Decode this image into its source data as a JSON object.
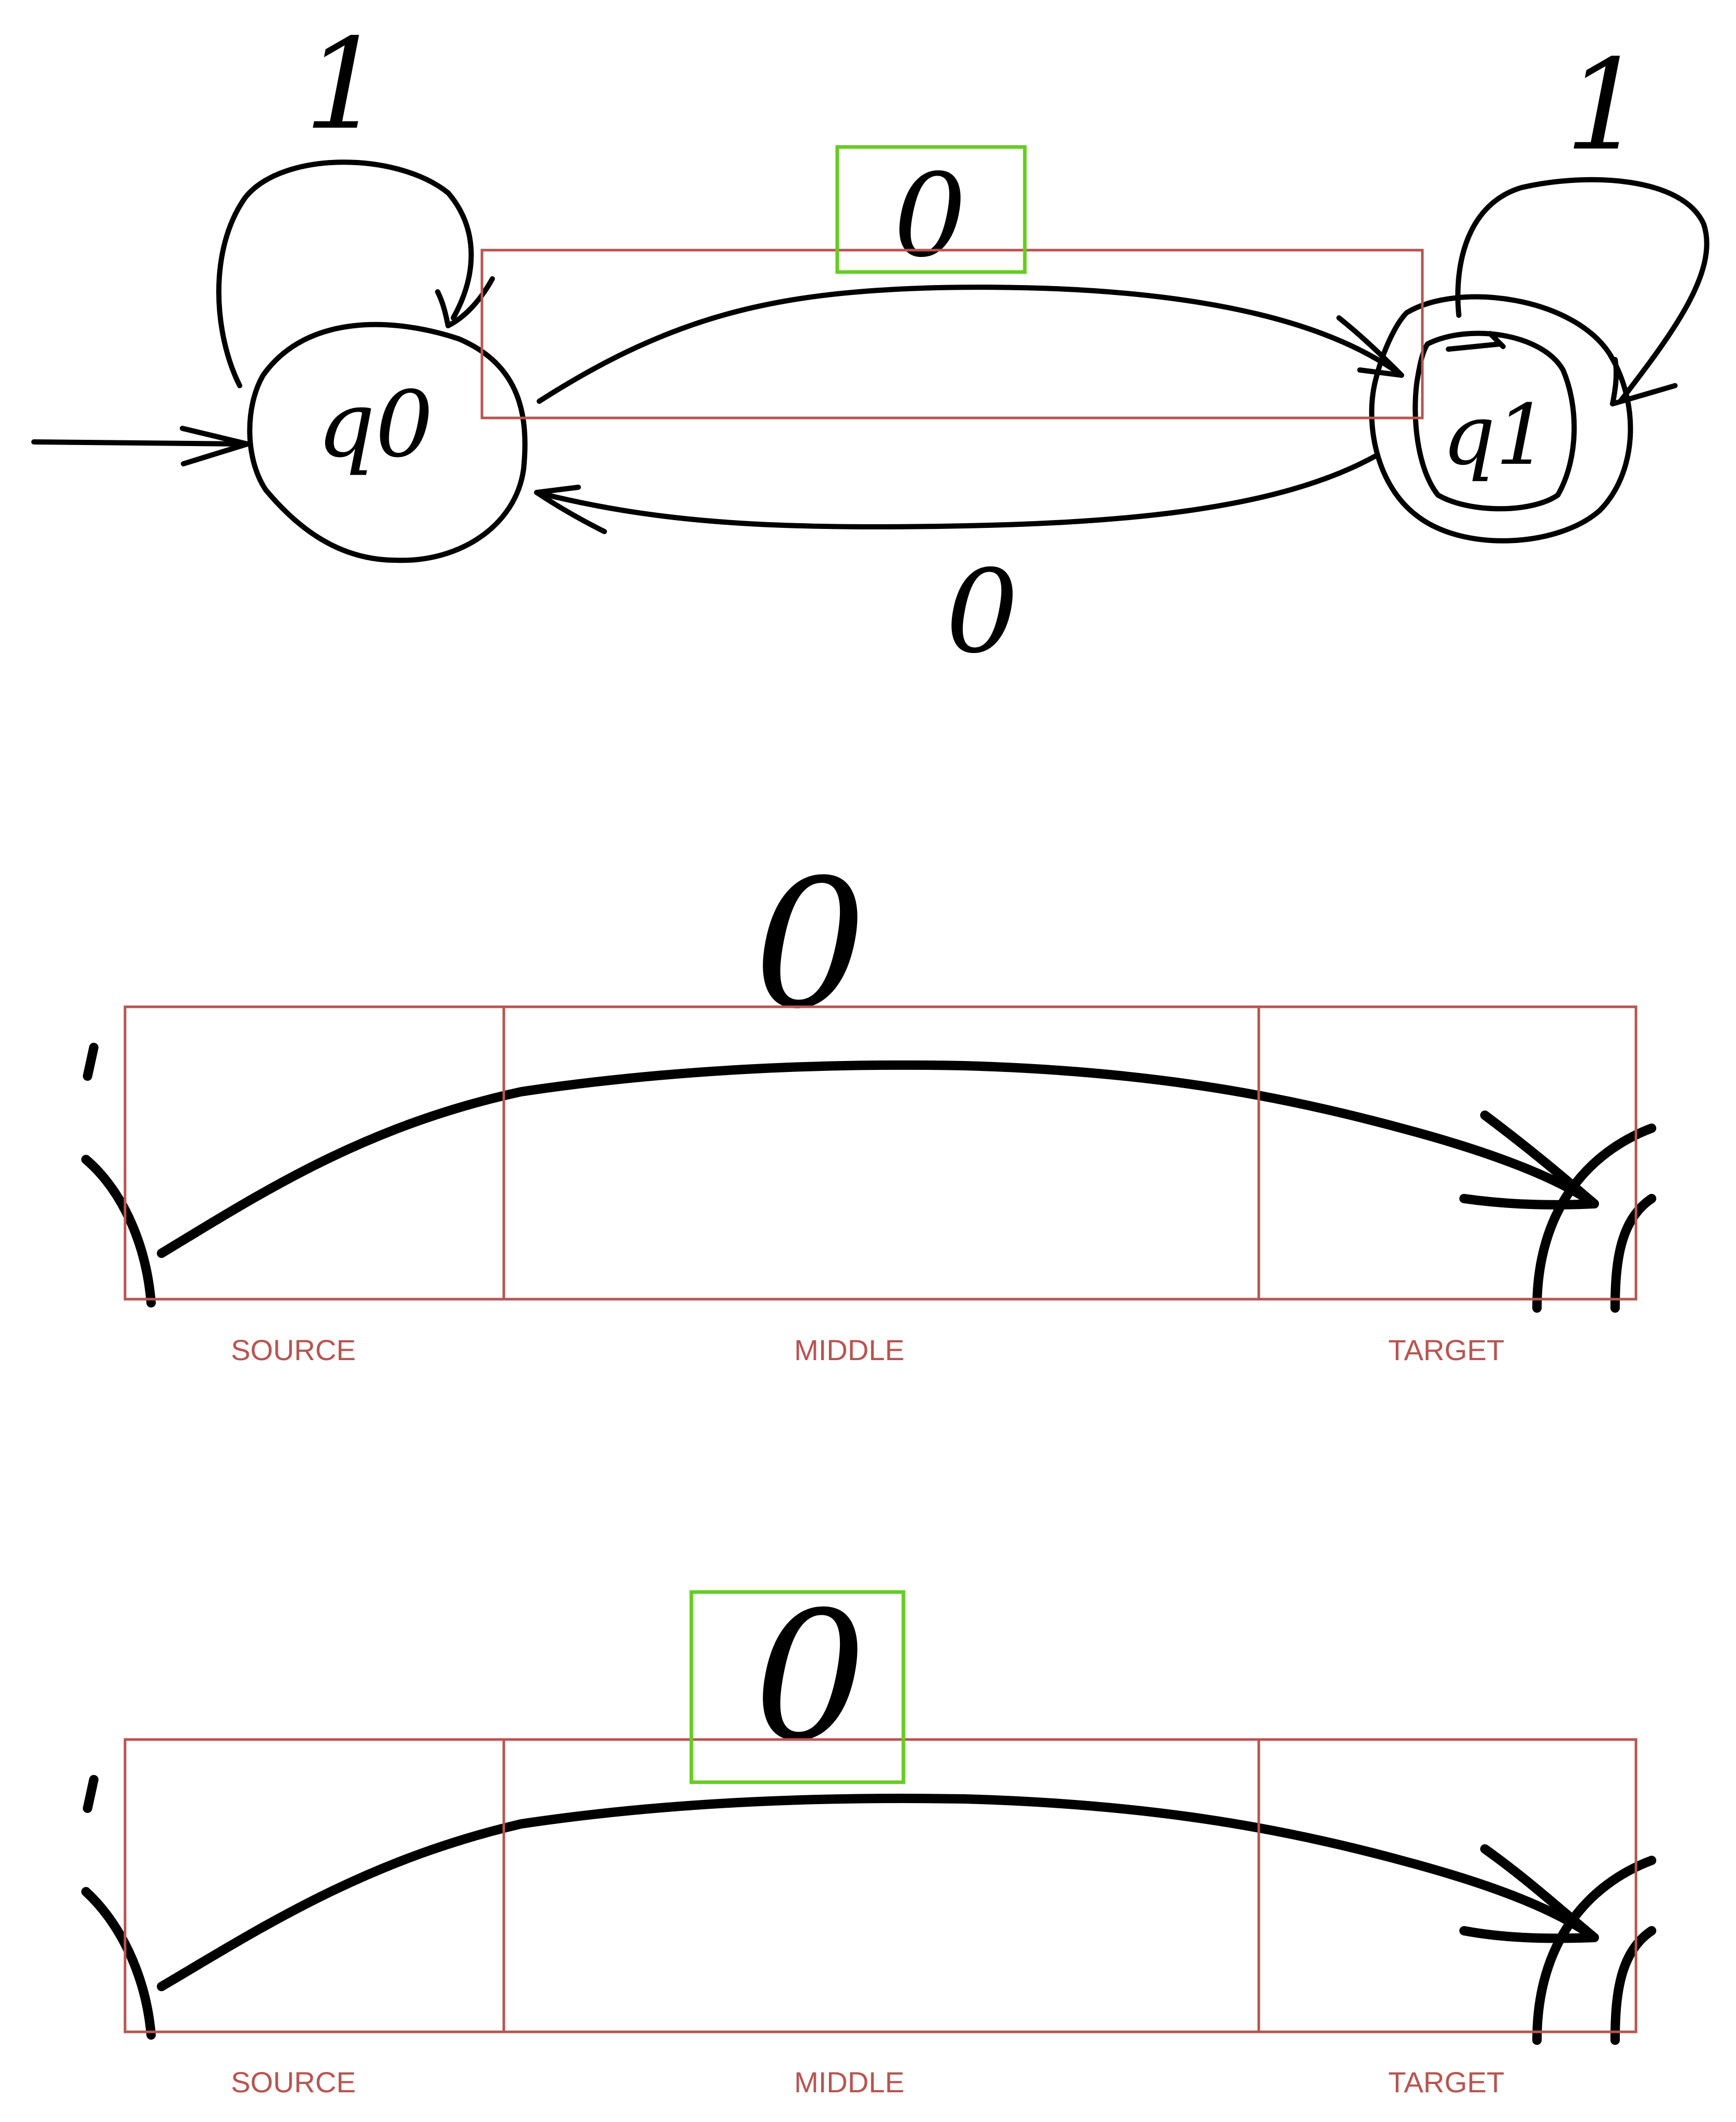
{
  "colors": {
    "ink": "#000000",
    "red_box": "#b85450",
    "green_box": "#66cc22",
    "background": "#ffffff"
  },
  "automaton": {
    "states": [
      {
        "label": "q0",
        "start": true,
        "accepting": false
      },
      {
        "label": "q1",
        "start": false,
        "accepting": true
      }
    ],
    "transitions": [
      {
        "from": "q0",
        "to": "q0",
        "symbol": "1"
      },
      {
        "from": "q1",
        "to": "q1",
        "symbol": "1"
      },
      {
        "from": "q0",
        "to": "q1",
        "symbol": "0"
      },
      {
        "from": "q1",
        "to": "q0",
        "symbol": "0"
      }
    ]
  },
  "zoom_panels": [
    {
      "label_symbol": "0",
      "segments": [
        "SOURCE",
        "MIDDLE",
        "TARGET"
      ]
    },
    {
      "label_symbol": "0",
      "segments": [
        "SOURCE",
        "MIDDLE",
        "TARGET"
      ]
    }
  ]
}
